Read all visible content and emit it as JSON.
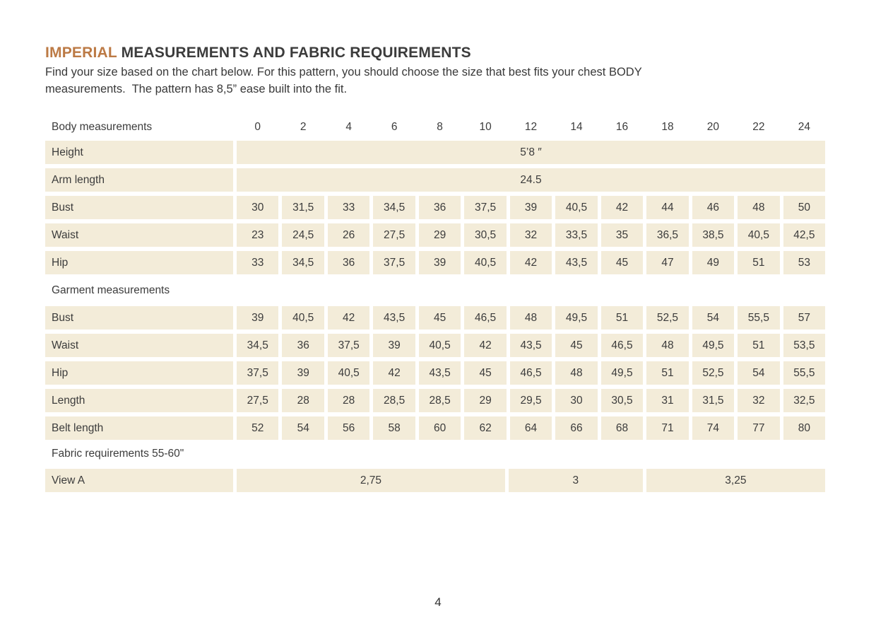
{
  "colors": {
    "accent": "#bc7a45",
    "cell_bg": "#f3ecd9",
    "text": "#3c3c3c"
  },
  "header": {
    "title_accent": "IMPERIAL",
    "title_rest": " MEASUREMENTS AND FABRIC REQUIREMENTS",
    "intro_line1": "Find your size based on the chart below. For this pattern, you should choose the size that best fits your chest BODY",
    "intro_line2": "measurements.  The pattern has 8,5” ease built into the fit."
  },
  "table": {
    "sizes": [
      "0",
      "2",
      "4",
      "6",
      "8",
      "10",
      "12",
      "14",
      "16",
      "18",
      "20",
      "22",
      "24"
    ],
    "rows": [
      {
        "kind": "header",
        "label": "Body measurements"
      },
      {
        "kind": "span",
        "label": "Height",
        "value": "5’8 ″"
      },
      {
        "kind": "span",
        "label": "Arm length",
        "value": "24.5"
      },
      {
        "kind": "cells",
        "label": "Bust",
        "values": [
          "30",
          "31,5",
          "33",
          "34,5",
          "36",
          "37,5",
          "39",
          "40,5",
          "42",
          "44",
          "46",
          "48",
          "50"
        ]
      },
      {
        "kind": "cells",
        "label": "Waist",
        "values": [
          "23",
          "24,5",
          "26",
          "27,5",
          "29",
          "30,5",
          "32",
          "33,5",
          "35",
          "36,5",
          "38,5",
          "40,5",
          "42,5"
        ]
      },
      {
        "kind": "cells",
        "label": "Hip",
        "values": [
          "33",
          "34,5",
          "36",
          "37,5",
          "39",
          "40,5",
          "42",
          "43,5",
          "45",
          "47",
          "49",
          "51",
          "53"
        ]
      },
      {
        "kind": "section",
        "label": "Garment measurements"
      },
      {
        "kind": "cells",
        "label": "Bust",
        "values": [
          "39",
          "40,5",
          "42",
          "43,5",
          "45",
          "46,5",
          "48",
          "49,5",
          "51",
          "52,5",
          "54",
          "55,5",
          "57"
        ]
      },
      {
        "kind": "cells",
        "label": "Waist",
        "values": [
          "34,5",
          "36",
          "37,5",
          "39",
          "40,5",
          "42",
          "43,5",
          "45",
          "46,5",
          "48",
          "49,5",
          "51",
          "53,5"
        ]
      },
      {
        "kind": "cells",
        "label": "Hip",
        "values": [
          "37,5",
          "39",
          "40,5",
          "42",
          "43,5",
          "45",
          "46,5",
          "48",
          "49,5",
          "51",
          "52,5",
          "54",
          "55,5"
        ]
      },
      {
        "kind": "cells",
        "label": "Length",
        "values": [
          "27,5",
          "28",
          "28",
          "28,5",
          "28,5",
          "29",
          "29,5",
          "30",
          "30,5",
          "31",
          "31,5",
          "32",
          "32,5"
        ]
      },
      {
        "kind": "cells",
        "label": "Belt length",
        "values": [
          "52",
          "54",
          "56",
          "58",
          "60",
          "62",
          "64",
          "66",
          "68",
          "71",
          "74",
          "77",
          "80"
        ]
      },
      {
        "kind": "section",
        "label": "Fabric requirements 55-60\"",
        "tight": true
      },
      {
        "kind": "multispan",
        "label": "View A",
        "spans": [
          {
            "value": "2,75",
            "cols": 6
          },
          {
            "value": "3",
            "cols": 3
          },
          {
            "value": "3,25",
            "cols": 4
          }
        ]
      }
    ]
  },
  "footer": {
    "page_number": "4"
  }
}
